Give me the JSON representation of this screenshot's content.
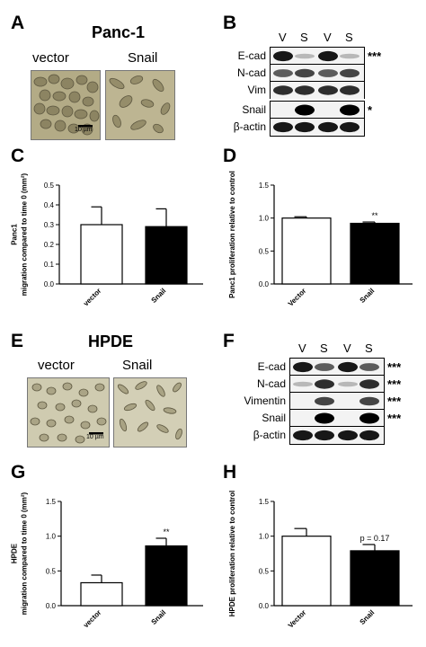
{
  "panels": {
    "A": {
      "letter": "A",
      "title": "Panc-1",
      "left_label": "vector",
      "right_label": "Snail",
      "scale_bar": "10 µm"
    },
    "B": {
      "letter": "B",
      "lanes": [
        "V",
        "S",
        "V",
        "S"
      ],
      "rows": [
        {
          "label": "E-cad",
          "sig": "***"
        },
        {
          "label": "N-cad",
          "sig": ""
        },
        {
          "label": "Vim",
          "sig": ""
        },
        {
          "label": "Snail",
          "sig": "*"
        },
        {
          "label": "β-actin",
          "sig": ""
        }
      ]
    },
    "C": {
      "letter": "C"
    },
    "D": {
      "letter": "D"
    },
    "E": {
      "letter": "E",
      "title": "HPDE",
      "left_label": "vector",
      "right_label": "Snail",
      "scale_bar": "10 µm"
    },
    "F": {
      "letter": "F",
      "lanes": [
        "V",
        "S",
        "V",
        "S"
      ],
      "rows": [
        {
          "label": "E-cad",
          "sig": "***"
        },
        {
          "label": "N-cad",
          "sig": "***"
        },
        {
          "label": "Vimentin",
          "sig": "***"
        },
        {
          "label": "Snail",
          "sig": "***"
        },
        {
          "label": "β-actin",
          "sig": ""
        }
      ]
    },
    "G": {
      "letter": "G"
    },
    "H": {
      "letter": "H"
    }
  },
  "chart_data": [
    {
      "id": "C",
      "type": "bar",
      "categories": [
        "vector",
        "Snail"
      ],
      "values": [
        0.3,
        0.29
      ],
      "errors": [
        0.09,
        0.09
      ],
      "ylabel": "Panc1\nmigration compared to time 0 (mm²)",
      "ylim": [
        0,
        0.5
      ],
      "yticks": [
        "0.0",
        "0.1",
        "0.2",
        "0.3",
        "0.4",
        "0.5"
      ],
      "annotation": "",
      "fills": [
        "#ffffff",
        "#000000"
      ]
    },
    {
      "id": "D",
      "type": "bar",
      "categories": [
        "Vector",
        "Snail"
      ],
      "values": [
        1.0,
        0.92
      ],
      "errors": [
        0.02,
        0.02
      ],
      "ylabel": "Panc1 proliferation relative to control",
      "ylim": [
        0,
        1.5
      ],
      "yticks": [
        "0.0",
        "0.5",
        "1.0",
        "1.5"
      ],
      "annotation": "**",
      "fills": [
        "#ffffff",
        "#000000"
      ]
    },
    {
      "id": "G",
      "type": "bar",
      "categories": [
        "vector",
        "Snail"
      ],
      "values": [
        0.33,
        0.86
      ],
      "errors": [
        0.11,
        0.11
      ],
      "ylabel": "HPDE\nmigration compared to time 0 (mm²)",
      "ylim": [
        0,
        1.5
      ],
      "yticks": [
        "0.0",
        "0.5",
        "1.0",
        "1.5"
      ],
      "annotation": "**",
      "fills": [
        "#ffffff",
        "#000000"
      ]
    },
    {
      "id": "H",
      "type": "bar",
      "categories": [
        "Vector",
        "Snail"
      ],
      "values": [
        1.0,
        0.79
      ],
      "errors": [
        0.11,
        0.09
      ],
      "ylabel": "HPDE proliferation relative to control",
      "ylim": [
        0,
        1.5
      ],
      "yticks": [
        "0.0",
        "0.5",
        "1.0",
        "1.5"
      ],
      "annotation": "p = 0.17",
      "fills": [
        "#ffffff",
        "#000000"
      ]
    }
  ]
}
